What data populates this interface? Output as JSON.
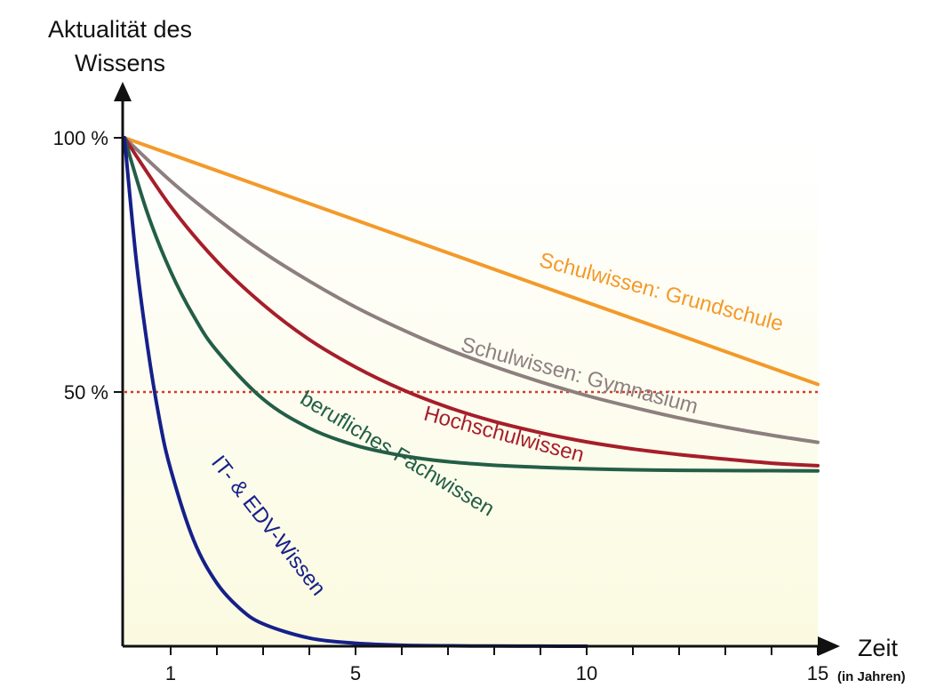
{
  "chart_data": {
    "type": "line",
    "ylabel_lines": [
      "Aktualität des",
      "Wissens"
    ],
    "xlabel": "Zeit",
    "xlabel_sub": "(in Jahren)",
    "xlim": [
      0,
      15
    ],
    "ylim": [
      0,
      100
    ],
    "x_ticks": [
      1,
      2,
      3,
      4,
      5,
      6,
      7,
      8,
      9,
      10,
      11,
      12,
      13,
      14,
      15
    ],
    "x_tick_labels": [
      {
        "x": 1,
        "label": "1"
      },
      {
        "x": 5,
        "label": "5"
      },
      {
        "x": 10,
        "label": "10"
      },
      {
        "x": 15,
        "label": "15"
      }
    ],
    "y_tick_labels": [
      {
        "y": 100,
        "label": "100 %"
      },
      {
        "y": 50,
        "label": "50 %"
      }
    ],
    "reference_line": {
      "y": 50,
      "color": "#d03a2a"
    },
    "series": [
      {
        "key": "grundschule",
        "name": "Schulwissen: Grundschule",
        "color": "#f39a2a",
        "x": [
          0,
          3,
          6,
          9,
          12,
          15
        ],
        "y": [
          100,
          90.3,
          80.6,
          70.9,
          61.2,
          51.5
        ]
      },
      {
        "key": "gymnasium",
        "name": "Schulwissen: Gymnasium",
        "color": "#8d7f7f",
        "x": [
          0,
          1,
          2,
          3,
          4,
          5,
          6,
          7,
          8,
          9,
          10,
          11,
          12,
          13,
          14,
          15
        ],
        "y": [
          100,
          91.5,
          84.1,
          77.5,
          71.8,
          66.7,
          62.3,
          58.4,
          55.0,
          52.0,
          49.3,
          47.0,
          44.9,
          43.1,
          41.5,
          40.1
        ]
      },
      {
        "key": "hochschule",
        "name": "Hochschulwissen",
        "color": "#a61e2a",
        "x": [
          0,
          1,
          2,
          3,
          4,
          5,
          6,
          7,
          8,
          9,
          10,
          11,
          12,
          13,
          14,
          15
        ],
        "y": [
          100,
          86.5,
          75.7,
          67.2,
          60.3,
          54.9,
          50.5,
          47.0,
          44.2,
          42.0,
          40.2,
          38.8,
          37.7,
          36.8,
          36.0,
          35.5
        ]
      },
      {
        "key": "beruflich",
        "name": "berufliches Fachwissen",
        "color": "#235e47",
        "x": [
          0,
          0.5,
          1,
          1.5,
          2,
          3,
          4,
          5,
          6,
          7,
          8,
          9,
          10,
          11,
          12,
          13,
          14,
          15
        ],
        "y": [
          100,
          85.1,
          73.7,
          64.9,
          58.1,
          48.6,
          42.9,
          39.5,
          37.5,
          36.3,
          35.6,
          35.2,
          34.9,
          34.7,
          34.6,
          34.55,
          34.52,
          34.5
        ]
      },
      {
        "key": "it",
        "name": "IT- & EDV-Wissen",
        "color": "#16208a",
        "x": [
          0,
          0.25,
          0.5,
          0.75,
          1,
          1.5,
          2,
          2.5,
          3,
          4,
          5,
          6,
          7,
          8,
          9,
          10
        ],
        "y": [
          100,
          76.4,
          58.9,
          45.0,
          34.8,
          20.8,
          12.4,
          7.4,
          4.4,
          1.6,
          0.6,
          0.2,
          0.08,
          0.03,
          0.01,
          0.0
        ]
      }
    ],
    "colors": {
      "background_fill": "#fefde6",
      "axis": "#111111"
    }
  }
}
